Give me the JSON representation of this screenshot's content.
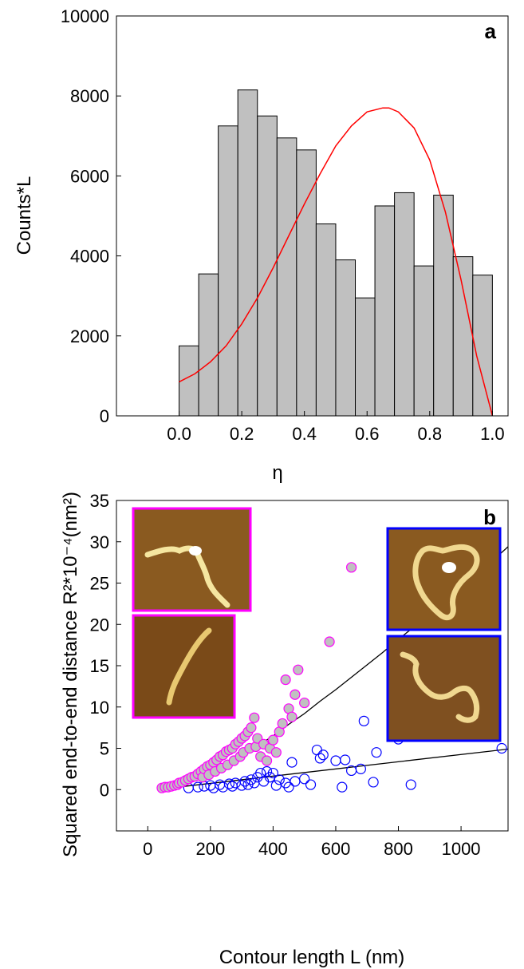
{
  "chart_data": [
    {
      "panel": "a",
      "type": "bar",
      "xlabel": "η",
      "ylabel": "Counts*L",
      "xlim": [
        -0.2,
        1.05
      ],
      "ylim": [
        0,
        10000
      ],
      "xticks": [
        "0.0",
        "0.2",
        "0.4",
        "0.6",
        "0.8",
        "1.0"
      ],
      "yticks": [
        "0",
        "2000",
        "4000",
        "6000",
        "8000",
        "10000"
      ],
      "bar_color": "#c0c0c0",
      "bin_width": 0.0625,
      "bins": [
        {
          "x0": 0.0,
          "value": 1750
        },
        {
          "x0": 0.0625,
          "value": 3550
        },
        {
          "x0": 0.125,
          "value": 7250
        },
        {
          "x0": 0.1875,
          "value": 8150
        },
        {
          "x0": 0.25,
          "value": 7500
        },
        {
          "x0": 0.3125,
          "value": 6950
        },
        {
          "x0": 0.375,
          "value": 6650
        },
        {
          "x0": 0.4375,
          "value": 4800
        },
        {
          "x0": 0.5,
          "value": 3900
        },
        {
          "x0": 0.5625,
          "value": 2950
        },
        {
          "x0": 0.625,
          "value": 5250
        },
        {
          "x0": 0.6875,
          "value": 5580
        },
        {
          "x0": 0.75,
          "value": 3750
        },
        {
          "x0": 0.8125,
          "value": 5520
        },
        {
          "x0": 0.875,
          "value": 3980
        },
        {
          "x0": 0.9375,
          "value": 3520
        }
      ],
      "curve_color": "#ff0000",
      "curve": {
        "x": [
          0.0,
          0.05,
          0.1,
          0.15,
          0.2,
          0.25,
          0.3,
          0.35,
          0.4,
          0.45,
          0.5,
          0.55,
          0.6,
          0.65,
          0.67,
          0.7,
          0.75,
          0.8,
          0.85,
          0.9,
          0.95,
          1.0
        ],
        "y": [
          850,
          1050,
          1350,
          1750,
          2300,
          2950,
          3700,
          4500,
          5300,
          6050,
          6750,
          7250,
          7600,
          7700,
          7700,
          7600,
          7200,
          6400,
          5100,
          3400,
          1500,
          0
        ]
      }
    },
    {
      "panel": "b",
      "type": "scatter",
      "xlabel": "Contour length L (nm)",
      "ylabel": "Squared end-to-end distance R²*10⁻⁴(nm²)",
      "xlim": [
        -100,
        1150
      ],
      "ylim": [
        -5,
        35
      ],
      "xticks": [
        "0",
        "200",
        "400",
        "600",
        "800",
        "1000"
      ],
      "yticks": [
        "0",
        "5",
        "10",
        "15",
        "20",
        "25",
        "30",
        "35"
      ],
      "series": [
        {
          "marker": "filled-circle",
          "edge_color": "#ff00ff",
          "fill_color": "#c0c0c0",
          "points": [
            [
              45,
              0.2
            ],
            [
              55,
              0.3
            ],
            [
              65,
              0.3
            ],
            [
              75,
              0.4
            ],
            [
              85,
              0.5
            ],
            [
              95,
              0.6
            ],
            [
              100,
              0.8
            ],
            [
              110,
              0.9
            ],
            [
              120,
              1.1
            ],
            [
              130,
              1.3
            ],
            [
              140,
              1.5
            ],
            [
              150,
              1.6
            ],
            [
              160,
              1.9
            ],
            [
              170,
              2.2
            ],
            [
              175,
              1.5
            ],
            [
              180,
              2.5
            ],
            [
              190,
              2.8
            ],
            [
              195,
              1.8
            ],
            [
              200,
              3.0
            ],
            [
              210,
              3.3
            ],
            [
              215,
              2.2
            ],
            [
              220,
              3.6
            ],
            [
              230,
              4.0
            ],
            [
              235,
              2.6
            ],
            [
              240,
              4.2
            ],
            [
              250,
              4.6
            ],
            [
              255,
              3.0
            ],
            [
              260,
              4.8
            ],
            [
              270,
              5.0
            ],
            [
              275,
              3.5
            ],
            [
              280,
              5.5
            ],
            [
              290,
              5.8
            ],
            [
              295,
              4.0
            ],
            [
              300,
              6.2
            ],
            [
              305,
              4.5
            ],
            [
              310,
              6.5
            ],
            [
              320,
              7.0
            ],
            [
              325,
              5.0
            ],
            [
              330,
              7.5
            ],
            [
              340,
              8.7
            ],
            [
              345,
              5.2
            ],
            [
              350,
              6.2
            ],
            [
              360,
              4.0
            ],
            [
              370,
              5.5
            ],
            [
              380,
              3.5
            ],
            [
              390,
              5.0
            ],
            [
              400,
              6.0
            ],
            [
              410,
              4.5
            ],
            [
              420,
              7.0
            ],
            [
              430,
              8.0
            ],
            [
              440,
              13.3
            ],
            [
              450,
              9.8
            ],
            [
              460,
              8.8
            ],
            [
              470,
              11.5
            ],
            [
              480,
              14.5
            ],
            [
              500,
              10.5
            ],
            [
              580,
              17.9
            ],
            [
              650,
              26.9
            ]
          ]
        },
        {
          "marker": "open-circle",
          "edge_color": "#0000ff",
          "points": [
            [
              130,
              0.2
            ],
            [
              160,
              0.3
            ],
            [
              180,
              0.4
            ],
            [
              200,
              0.5
            ],
            [
              210,
              0.2
            ],
            [
              230,
              0.6
            ],
            [
              240,
              0.3
            ],
            [
              260,
              0.7
            ],
            [
              270,
              0.4
            ],
            [
              280,
              0.8
            ],
            [
              300,
              0.5
            ],
            [
              310,
              1.0
            ],
            [
              320,
              0.6
            ],
            [
              330,
              1.2
            ],
            [
              340,
              0.8
            ],
            [
              350,
              1.5
            ],
            [
              360,
              2.0
            ],
            [
              370,
              1.0
            ],
            [
              380,
              2.2
            ],
            [
              390,
              1.5
            ],
            [
              400,
              2.0
            ],
            [
              410,
              0.5
            ],
            [
              420,
              1.2
            ],
            [
              440,
              0.8
            ],
            [
              450,
              0.3
            ],
            [
              460,
              3.3
            ],
            [
              470,
              1.0
            ],
            [
              500,
              1.3
            ],
            [
              520,
              0.6
            ],
            [
              540,
              4.8
            ],
            [
              550,
              3.8
            ],
            [
              560,
              4.2
            ],
            [
              600,
              3.5
            ],
            [
              620,
              0.3
            ],
            [
              630,
              3.6
            ],
            [
              650,
              2.3
            ],
            [
              680,
              2.5
            ],
            [
              690,
              8.3
            ],
            [
              720,
              0.9
            ],
            [
              730,
              4.5
            ],
            [
              800,
              6.1
            ],
            [
              840,
              0.6
            ],
            [
              1130,
              5.0
            ]
          ]
        }
      ],
      "fit_lines": [
        {
          "x": [
            50,
            100,
            150,
            200,
            250,
            300,
            350,
            400,
            450,
            500,
            550,
            600,
            650,
            700,
            750,
            800,
            850,
            900,
            950,
            1000,
            1050,
            1100,
            1150
          ],
          "y": [
            0.1,
            0.5,
            1.2,
            2.0,
            3.0,
            4.0,
            5.3,
            6.5,
            7.9,
            9.2,
            10.7,
            12.1,
            13.6,
            15.1,
            16.6,
            18.2,
            19.7,
            21.3,
            22.9,
            24.5,
            26.1,
            27.7,
            29.4
          ]
        },
        {
          "x": [
            50,
            1150
          ],
          "y": [
            0.1,
            4.9
          ]
        }
      ],
      "insets": [
        {
          "border": "#ff00ff",
          "bg": "#8a5a20"
        },
        {
          "border": "#ff00ff",
          "bg": "#7a4a18"
        },
        {
          "border": "#0000ff",
          "bg": "#8a5a20"
        },
        {
          "border": "#0000ff",
          "bg": "#7f5020"
        }
      ]
    }
  ]
}
